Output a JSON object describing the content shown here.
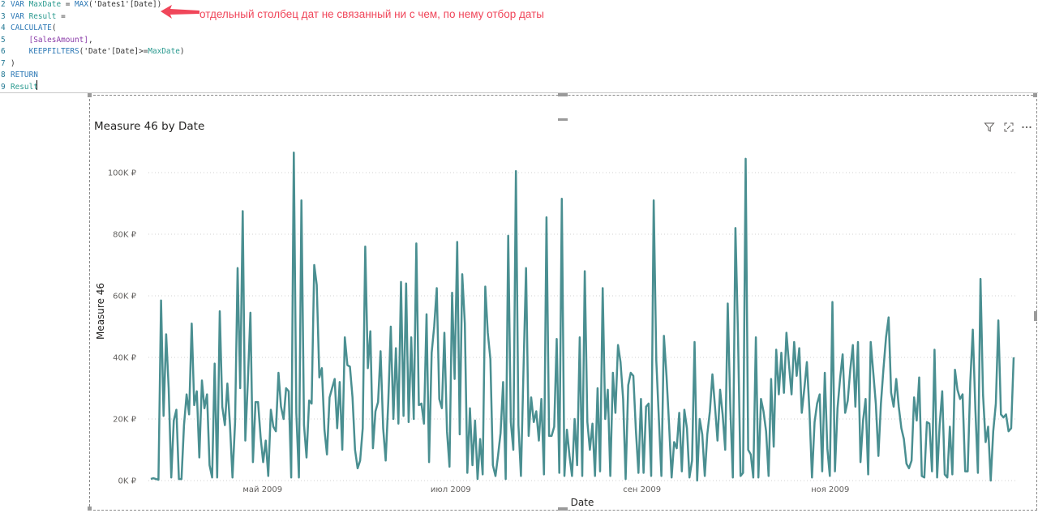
{
  "editor": {
    "lines": [
      {
        "num": "2",
        "tokens": [
          {
            "c": "kw",
            "t": "VAR "
          },
          {
            "c": "var",
            "t": "MaxDate"
          },
          {
            "c": "pl",
            "t": " = "
          },
          {
            "c": "fn",
            "t": "MAX"
          },
          {
            "c": "pl",
            "t": "("
          },
          {
            "c": "str",
            "t": "'Dates1'[Date]"
          },
          {
            "c": "pl",
            "t": ")"
          }
        ]
      },
      {
        "num": "3",
        "tokens": [
          {
            "c": "kw",
            "t": "VAR "
          },
          {
            "c": "var",
            "t": "Result"
          },
          {
            "c": "pl",
            "t": " ="
          }
        ]
      },
      {
        "num": "4",
        "tokens": [
          {
            "c": "fn",
            "t": "CALCULATE"
          },
          {
            "c": "pl",
            "t": "("
          }
        ]
      },
      {
        "num": "5",
        "tokens": [
          {
            "c": "pl",
            "t": "    "
          },
          {
            "c": "col",
            "t": "[SalesAmount]"
          },
          {
            "c": "pl",
            "t": ","
          }
        ]
      },
      {
        "num": "6",
        "tokens": [
          {
            "c": "pl",
            "t": "    "
          },
          {
            "c": "fn",
            "t": "KEEPFILTERS"
          },
          {
            "c": "pl",
            "t": "("
          },
          {
            "c": "str",
            "t": "'Date'[Date]"
          },
          {
            "c": "pl",
            "t": ">="
          },
          {
            "c": "var",
            "t": "MaxDate"
          },
          {
            "c": "pl",
            "t": ")"
          }
        ]
      },
      {
        "num": "7",
        "tokens": [
          {
            "c": "pl",
            "t": ")"
          }
        ]
      },
      {
        "num": "8",
        "tokens": [
          {
            "c": "kw",
            "t": "RETURN"
          }
        ]
      },
      {
        "num": "9",
        "tokens": [
          {
            "c": "var",
            "t": "Result"
          }
        ]
      }
    ]
  },
  "annotation": {
    "text": "отдельный столбец дат не связанный ни с чем, по нему отбор даты",
    "color": "#f0465a"
  },
  "visual": {
    "title": "Measure 46 by Date",
    "icons": [
      "filter-icon",
      "focus-mode-icon",
      "more-options-icon"
    ]
  },
  "chart_data": {
    "type": "line",
    "title": "Measure 46 by Date",
    "xlabel": "Date",
    "ylabel": "Measure 46",
    "ylim": [
      0,
      110000
    ],
    "y_ticks": [
      {
        "value": 0,
        "label": "0K ₽"
      },
      {
        "value": 20000,
        "label": "20K ₽"
      },
      {
        "value": 40000,
        "label": "40K ₽"
      },
      {
        "value": 60000,
        "label": "60K ₽"
      },
      {
        "value": 80000,
        "label": "80K ₽"
      },
      {
        "value": 100000,
        "label": "100K ₽"
      }
    ],
    "x_ticks": [
      "май 2009",
      "июл 2009",
      "сен 2009",
      "ноя 2009"
    ],
    "x_range": [
      "2009-03-25",
      "2009-12-31"
    ],
    "grid": "horizontal dotted",
    "series": [
      {
        "color": "#4a8f91",
        "values": [
          500,
          800,
          500,
          300,
          58500,
          21000,
          47500,
          30000,
          1000,
          19500,
          23000,
          500,
          500,
          18000,
          28000,
          21500,
          51000,
          24500,
          29000,
          7500,
          32500,
          23500,
          28000,
          5000,
          1000,
          38000,
          1000,
          55000,
          24000,
          18000,
          31500,
          18000,
          1000,
          19000,
          69000,
          30000,
          87500,
          13000,
          32000,
          54500,
          6000,
          25500,
          25500,
          14000,
          6000,
          13000,
          1500,
          23000,
          17500,
          16000,
          35000,
          24000,
          20000,
          30000,
          29000,
          1000,
          106500,
          22000,
          1000,
          91000,
          18000,
          7500,
          26000,
          25000,
          70000,
          63500,
          33500,
          36500,
          16500,
          8500,
          27000,
          30000,
          33000,
          17000,
          32000,
          10000,
          46500,
          37500,
          37000,
          27000,
          10000,
          4000,
          6500,
          17000,
          76000,
          36500,
          48500,
          10500,
          22500,
          25500,
          42000,
          17000,
          6500,
          25500,
          50000,
          20000,
          43000,
          18500,
          64500,
          21000,
          64000,
          19000,
          46500,
          20000,
          77000,
          24500,
          25000,
          18500,
          54000,
          6000,
          41500,
          50000,
          62500,
          26500,
          23500,
          48000,
          16000,
          4500,
          61000,
          33000,
          77500,
          15000,
          67000,
          51000,
          2500,
          23500,
          5000,
          19500,
          500,
          13500,
          2000,
          63000,
          48000,
          39500,
          5000,
          1500,
          8000,
          15500,
          32000,
          500,
          79500,
          19000,
          10000,
          100500,
          18000,
          1500,
          36500,
          69000,
          14500,
          27000,
          19000,
          22500,
          13000,
          26500,
          2000,
          85500,
          14500,
          14500,
          17500,
          46000,
          2500,
          91500,
          1500,
          16500,
          8000,
          1500,
          20000,
          5000,
          46500,
          1500,
          68000,
          19000,
          10000,
          18500,
          1500,
          30000,
          3000,
          62500,
          20000,
          29500,
          1500,
          35000,
          22000,
          44000,
          38500,
          26500,
          500,
          31000,
          35000,
          34000,
          16500,
          2500,
          26500,
          2500,
          24000,
          25000,
          1500,
          91000,
          39000,
          20500,
          1500,
          47000,
          34000,
          18500,
          1000,
          12500,
          10500,
          22000,
          3000,
          23000,
          17000,
          1000,
          6500,
          45000,
          0,
          20000,
          15000,
          1500,
          15000,
          22500,
          34500,
          24000,
          13000,
          29500,
          21500,
          10000,
          57500,
          23500,
          1000,
          82000,
          48000,
          1500,
          2500,
          104500,
          10000,
          8500,
          1000,
          46500,
          1000,
          26500,
          22500,
          16000,
          1500,
          33000,
          11000,
          42500,
          28000,
          41500,
          28500,
          48000,
          37500,
          28000,
          45000,
          34000,
          43000,
          22000,
          30000,
          38500,
          22500,
          1000,
          19000,
          25000,
          28000,
          3000,
          35000,
          10500,
          1500,
          58000,
          3000,
          23500,
          33000,
          41000,
          22000,
          26000,
          36000,
          44000,
          24000,
          45000,
          6000,
          19500,
          26500,
          2000,
          45000,
          35000,
          25000,
          8000,
          25000,
          36500,
          46500,
          53000,
          28500,
          24000,
          33000,
          24000,
          17000,
          13500,
          5500,
          4000,
          6500,
          27000,
          19500,
          33500,
          1500,
          1000,
          19000,
          18500,
          3000,
          42500,
          1000,
          18000,
          29000,
          2000,
          1000,
          17500,
          2000,
          36000,
          29500,
          26500,
          28000,
          3000,
          3000,
          32000,
          49000,
          23000,
          2500,
          65500,
          28000,
          12500,
          17500,
          0,
          16000,
          25000,
          52000,
          21500,
          20500,
          21500,
          16000,
          17000,
          40000
        ]
      }
    ]
  }
}
